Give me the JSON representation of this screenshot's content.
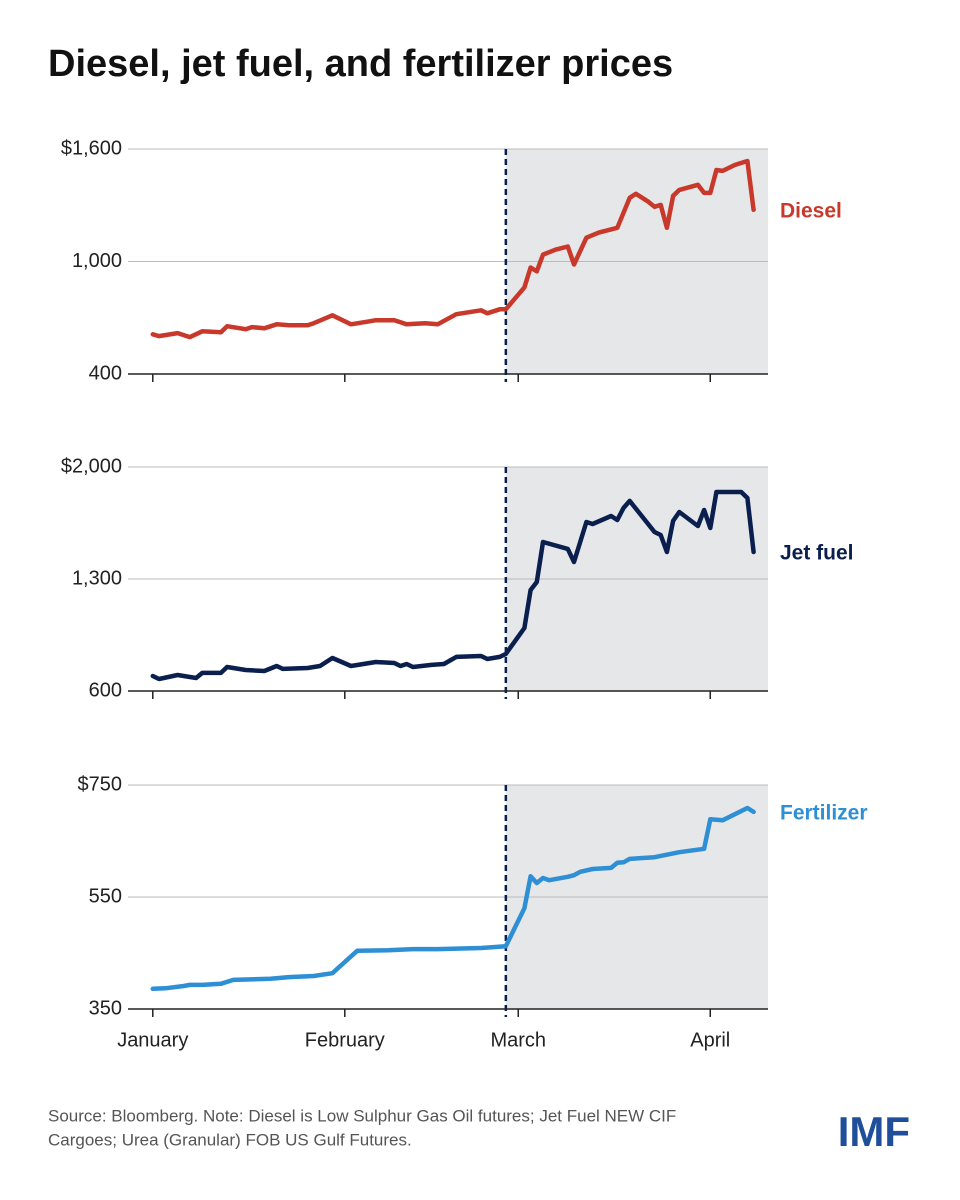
{
  "title": "Diesel, jet fuel, and fertilizer prices",
  "source": [
    "Source: Bloomberg. Note: Diesel is Low Sulphur Gas Oil futures; Jet Fuel NEW CIF",
    "Cargoes; Urea (Granular) FOB US Gulf Futures."
  ],
  "logo": "IMF",
  "chart_data": [
    {
      "type": "line",
      "xlim": [
        -4,
        99
      ],
      "xticks": [
        0,
        31,
        59,
        90
      ],
      "shade_start": 57,
      "ylim": [
        400,
        1600
      ],
      "yticks": [
        400,
        {
          "value": 1000,
          "label": "1,000"
        },
        {
          "value": 1600,
          "label": "$1,600"
        }
      ],
      "x": [
        0,
        1,
        4,
        6,
        8,
        11,
        12,
        15,
        16,
        18,
        20,
        22,
        25,
        26,
        29,
        32,
        35,
        36,
        39,
        40,
        41,
        44,
        46,
        49,
        53,
        54,
        56,
        57,
        60,
        61,
        62,
        63,
        65,
        67,
        68,
        70,
        72,
        75,
        77,
        78,
        80,
        81,
        82,
        83,
        84,
        85,
        88,
        89,
        90,
        91,
        92,
        94,
        96,
        97
      ],
      "series": [
        {
          "name": "Diesel",
          "color": "#c8392b",
          "values": [
            612,
            602,
            618,
            597,
            628,
            623,
            655,
            639,
            650,
            644,
            665,
            660,
            660,
            671,
            713,
            665,
            681,
            687,
            687,
            676,
            665,
            671,
            665,
            719,
            740,
            724,
            745,
            745,
            862,
            968,
            947,
            1037,
            1063,
            1080,
            984,
            1127,
            1154,
            1180,
            1340,
            1361,
            1319,
            1292,
            1302,
            1180,
            1350,
            1382,
            1409,
            1366,
            1366,
            1488,
            1483,
            1515,
            1536,
            1276
          ]
        }
      ]
    },
    {
      "type": "line",
      "xlim": [
        -4,
        99
      ],
      "xticks": [
        0,
        31,
        59,
        90
      ],
      "shade_start": 57,
      "ylim": [
        600,
        2000
      ],
      "yticks": [
        600,
        {
          "value": 1300,
          "label": "1,300"
        },
        {
          "value": 2000,
          "label": "$2,000"
        }
      ],
      "x": [
        0,
        1,
        4,
        7,
        8,
        11,
        12,
        13,
        15,
        18,
        20,
        21,
        25,
        27,
        29,
        32,
        35,
        36,
        39,
        40,
        41,
        42,
        45,
        47,
        49,
        53,
        54,
        56,
        57,
        60,
        61,
        62,
        63,
        67,
        68,
        70,
        71,
        74,
        75,
        76,
        77,
        81,
        82,
        83,
        84,
        85,
        88,
        89,
        90,
        91,
        95,
        96,
        97
      ],
      "series": [
        {
          "name": "Jet fuel",
          "color": "#0b1f4f",
          "values": [
            694,
            675,
            700,
            681,
            713,
            713,
            750,
            744,
            731,
            725,
            756,
            738,
            744,
            756,
            806,
            756,
            775,
            781,
            775,
            756,
            769,
            750,
            763,
            769,
            813,
            819,
            800,
            813,
            831,
            994,
            1231,
            1281,
            1531,
            1488,
            1406,
            1656,
            1644,
            1694,
            1669,
            1744,
            1788,
            1594,
            1575,
            1469,
            1663,
            1719,
            1631,
            1731,
            1619,
            1844,
            1844,
            1806,
            1469
          ]
        }
      ]
    },
    {
      "type": "line",
      "xlim": [
        -4,
        99
      ],
      "shade_start": 57,
      "xticks": [
        {
          "value": 0,
          "label": "January"
        },
        {
          "value": 31,
          "label": "February"
        },
        {
          "value": 59,
          "label": "March"
        },
        {
          "value": 90,
          "label": "April"
        }
      ],
      "ylim": [
        350,
        750
      ],
      "yticks": [
        350,
        550,
        {
          "value": 750,
          "label": "$750"
        }
      ],
      "x": [
        0,
        2,
        5,
        6,
        8,
        11,
        13,
        19,
        22,
        26,
        29,
        31,
        33,
        38,
        42,
        46,
        53,
        57,
        60,
        61,
        62,
        63,
        64,
        67,
        68,
        69,
        71,
        74,
        75,
        76,
        77,
        81,
        85,
        89,
        90,
        92,
        96,
        97
      ],
      "series": [
        {
          "name": "Fertilizer",
          "color": "#2e8fd4",
          "values": [
            386,
            387,
            391,
            393,
            393,
            395,
            402,
            404,
            407,
            409,
            414,
            434,
            454,
            455,
            457,
            457,
            459,
            462,
            530,
            587,
            575,
            584,
            580,
            586,
            589,
            595,
            600,
            602,
            611,
            612,
            618,
            621,
            630,
            636,
            689,
            687,
            709,
            702
          ]
        }
      ]
    }
  ]
}
